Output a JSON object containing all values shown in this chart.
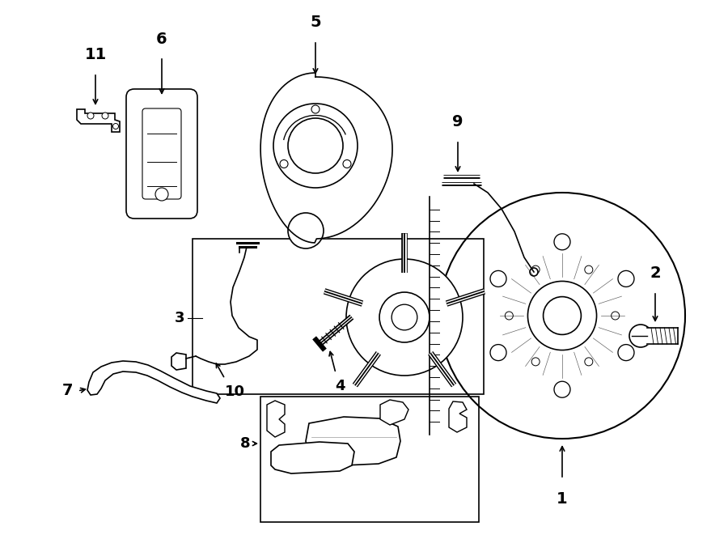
{
  "bg_color": "#ffffff",
  "line_color": "#000000",
  "lw": 1.2,
  "fig_w": 9.0,
  "fig_h": 6.61
}
